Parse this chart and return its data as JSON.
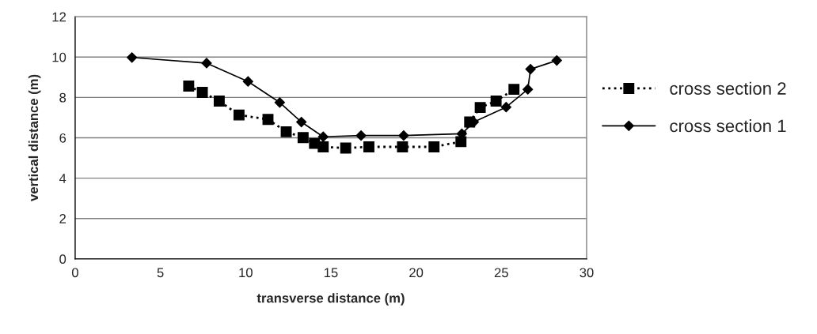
{
  "chart_data": {
    "type": "line",
    "xlabel": "transverse distance (m)",
    "ylabel": "vertical distance (m)",
    "xlim": [
      0,
      30
    ],
    "xticks": [
      0,
      5,
      10,
      15,
      20,
      25,
      30
    ],
    "ylim": [
      0,
      12
    ],
    "yticks": [
      0,
      2,
      4,
      6,
      8,
      10,
      12
    ],
    "grid": "y",
    "legend": "right",
    "series": [
      {
        "name": "cross section 2",
        "color": "#000000",
        "marker": "square",
        "line_style": "dotted",
        "x": [
          6.66,
          7.46,
          8.45,
          9.61,
          11.31,
          12.38,
          13.37,
          14.04,
          14.55,
          15.87,
          17.23,
          19.2,
          21.05,
          22.63,
          23.14,
          23.76,
          24.69,
          25.74
        ],
        "values": [
          8.56,
          8.25,
          7.82,
          7.13,
          6.91,
          6.3,
          6.01,
          5.72,
          5.55,
          5.49,
          5.55,
          5.55,
          5.55,
          5.81,
          6.78,
          7.5,
          7.82,
          8.4
        ]
      },
      {
        "name": "cross section 1",
        "color": "#000000",
        "marker": "diamond",
        "line_style": "solid",
        "x": [
          3.33,
          7.71,
          10.14,
          12.0,
          13.27,
          14.55,
          16.77,
          19.27,
          22.68,
          23.38,
          25.28,
          26.55,
          26.71,
          28.25
        ],
        "values": [
          9.98,
          9.7,
          8.79,
          7.75,
          6.78,
          6.05,
          6.11,
          6.11,
          6.2,
          6.78,
          7.52,
          8.4,
          9.4,
          9.83
        ]
      }
    ]
  }
}
